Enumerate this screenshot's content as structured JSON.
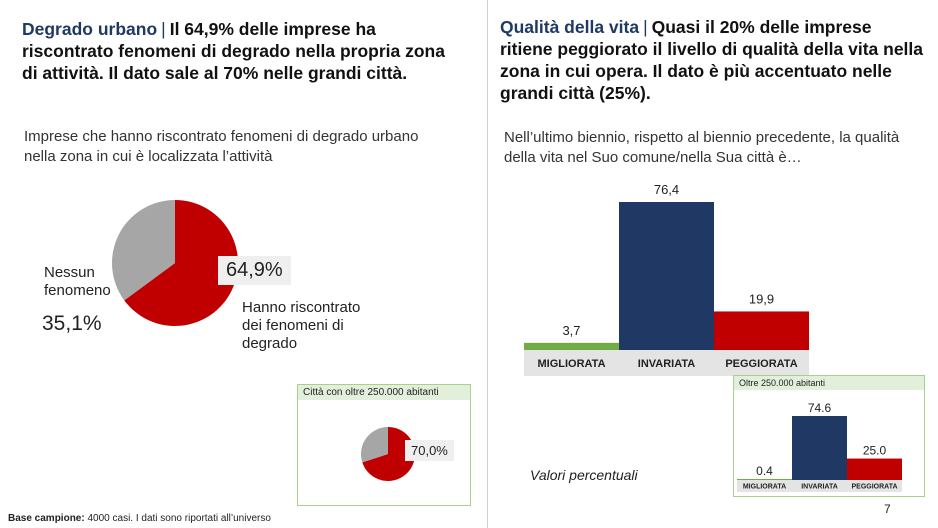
{
  "left": {
    "tag": "Degrado urbano",
    "separator": "|",
    "headline": "Il 64,9% delle imprese ha riscontrato fenomeni di degrado nella propria zona di attività. Il dato sale al 70% nelle grandi città.",
    "subtitle": "Imprese che hanno riscontrato fenomeni di degrado urbano nella zona in cui è localizzata l’attività",
    "no_label": "Nessun fenomeno",
    "no_pct": "35,1%",
    "yes_pct": "64,9%",
    "yes_label": "Hanno riscontrato dei fenomeni di degrado",
    "inset_title": "Città con oltre 250.000 abitanti",
    "inset_pct": "70,0%",
    "footer_bold": "Base campione:",
    "footer_text": "4000 casi. I dati sono riportati all’universo"
  },
  "right": {
    "tag": "Qualità della vita",
    "separator": "|",
    "headline": "Quasi il 20% delle imprese ritiene peggiorato il livello di qualità della vita nella zona in cui opera. Il dato è più accentuato nelle grandi città (25%).",
    "subtitle": "Nell’ultimo biennio, rispetto al biennio precedente, la qualità della vita nel Suo comune/nella Sua città è…",
    "inset_title": "Oltre 250.000 abitanti",
    "note": "Valori percentuali"
  },
  "page_number": "7",
  "colors": {
    "red": "#c00000",
    "grey": "#a6a6a6",
    "navy": "#1f3864",
    "green": "#70ad47",
    "axis_band": "#e4e4e4"
  },
  "chart_data": [
    {
      "type": "pie",
      "slices": [
        {
          "name": "Hanno riscontrato dei fenomeni di degrado",
          "value": 64.9,
          "color": "#c00000"
        },
        {
          "name": "Nessun fenomeno",
          "value": 35.1,
          "color": "#a6a6a6"
        }
      ]
    },
    {
      "type": "pie",
      "title": "Città con oltre 250.000 abitanti",
      "slices": [
        {
          "name": "Hanno riscontrato dei fenomeni di degrado",
          "value": 70.0,
          "color": "#c00000"
        },
        {
          "name": "Nessun fenomeno",
          "value": 30.0,
          "color": "#a6a6a6"
        }
      ]
    },
    {
      "type": "bar",
      "categories": [
        "MIGLIORATA",
        "INVARIATA",
        "PEGGIORATA"
      ],
      "values": [
        3.7,
        76.4,
        19.9
      ],
      "value_labels": [
        "3,7",
        "76,4",
        "19,9"
      ],
      "colors": [
        "#70ad47",
        "#1f3864",
        "#c00000"
      ],
      "ylim": [
        0,
        76.4
      ]
    },
    {
      "type": "bar",
      "title": "Oltre 250.000 abitanti",
      "categories": [
        "MIGLIORATA",
        "INVARIATA",
        "PEGGIORATA"
      ],
      "values": [
        0.4,
        74.6,
        25.0
      ],
      "value_labels": [
        "0.4",
        "74.6",
        "25.0"
      ],
      "colors": [
        "#70ad47",
        "#1f3864",
        "#c00000"
      ],
      "ylim": [
        0,
        74.6
      ]
    }
  ]
}
